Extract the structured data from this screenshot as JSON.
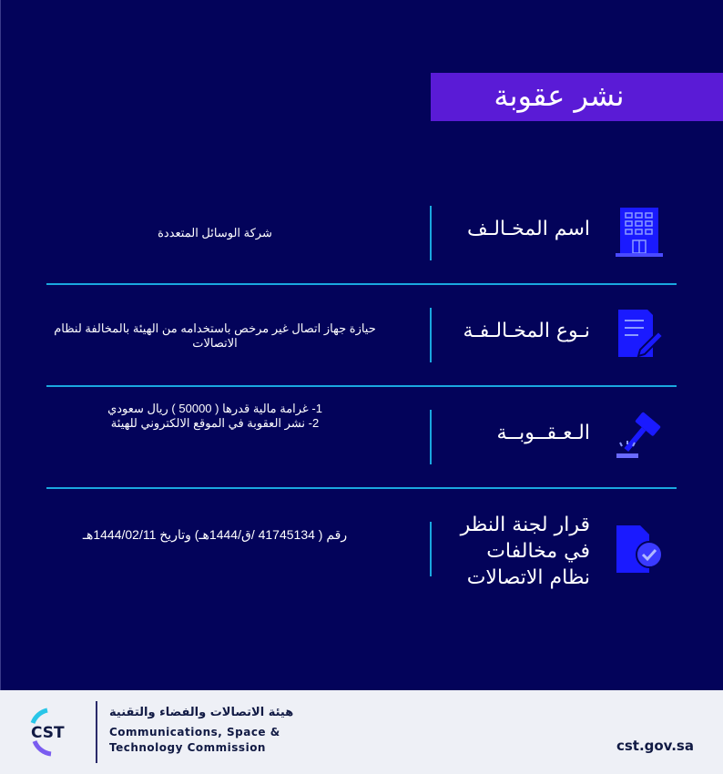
{
  "title": "نشر عقوبة",
  "rows": [
    {
      "label": "اسم المخـالـف",
      "icon": "building-icon",
      "value_lines": [
        "شركة الوسائل المتعددة"
      ]
    },
    {
      "label": "نـوع المخـالـفـة",
      "icon": "document-edit-icon",
      "value_lines": [
        "حيازة جهاز اتصال غير مرخص باستخدامه من الهيئة بالمخالفة لنظام",
        "الاتصالات"
      ]
    },
    {
      "label": "الـعـقــوبــة",
      "icon": "gavel-icon",
      "value_lines": [
        "1- غرامة مالية قدرها ( 50000 ) ريال سعودي",
        "2-   نشر العقوبة في الموقع الالكتروني للهيئة"
      ]
    },
    {
      "label_lines": [
        "قرار لجنة النظر",
        "في مخالفات",
        "نظام الاتصالات"
      ],
      "icon": "verified-document-icon",
      "value_lines": [
        "رقم (  41745134  /ق/1444هـ) وتاريخ 1444/02/11هـ"
      ]
    }
  ],
  "footer": {
    "org_ar": "هيئة الاتصالات والفضاء والتقنية",
    "org_en_1": "Communications, Space &",
    "org_en_2": "Technology Commission",
    "logo_text": "CST",
    "website": "cst.gov.sa"
  },
  "colors": {
    "background": "#03035a",
    "title_bar": "#5a1bd6",
    "accent_line": "#1aa8e0",
    "icon": "#1a1aff"
  }
}
